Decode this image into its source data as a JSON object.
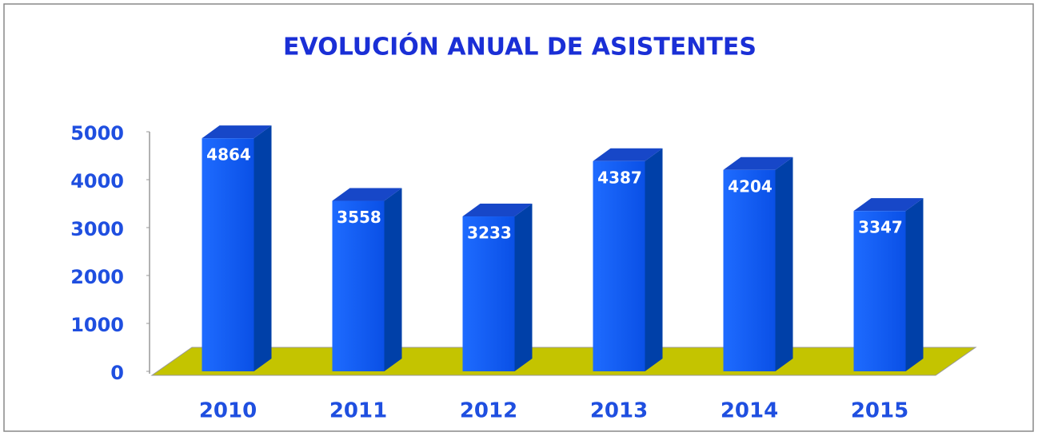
{
  "chart_data": {
    "type": "bar3d",
    "title": "EVOLUCIÓN ANUAL DE ASISTENTES",
    "categories": [
      "2010",
      "2011",
      "2012",
      "2013",
      "2014",
      "2015"
    ],
    "values": [
      4864,
      3558,
      3233,
      4387,
      4204,
      3347
    ],
    "color": "#0b5cf5",
    "floor_color": "#c4c400",
    "ylim": [
      0,
      5000
    ],
    "yticks": [
      0,
      1000,
      2000,
      3000,
      4000,
      5000
    ]
  }
}
